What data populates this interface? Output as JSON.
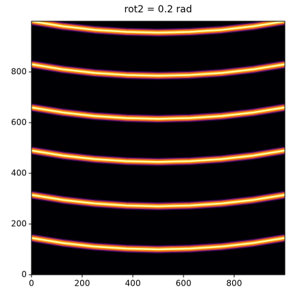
{
  "chart_data": {
    "type": "image",
    "title": "rot2 = 0.2 rad",
    "xlim": [
      0,
      1000
    ],
    "ylim": [
      0,
      1000
    ],
    "xticks": [
      0,
      200,
      400,
      600,
      800
    ],
    "yticks": [
      0,
      200,
      400,
      600,
      800
    ],
    "background": "#000004",
    "x": [
      0,
      125,
      250,
      375,
      500,
      625,
      750,
      875,
      1000
    ],
    "series": [
      {
        "values": [
          145,
          125,
          111,
          103,
          100,
          103,
          111,
          125,
          145
        ]
      },
      {
        "values": [
          315,
          295,
          281,
          273,
          270,
          273,
          281,
          295,
          315
        ]
      },
      {
        "values": [
          490,
          470,
          456,
          448,
          445,
          448,
          456,
          470,
          490
        ]
      },
      {
        "values": [
          660,
          640,
          626,
          618,
          615,
          618,
          626,
          640,
          660
        ]
      },
      {
        "values": [
          830,
          810,
          796,
          788,
          785,
          788,
          796,
          810,
          830
        ]
      },
      {
        "values": [
          1000,
          980,
          966,
          958,
          955,
          958,
          966,
          980,
          1000
        ]
      }
    ]
  }
}
